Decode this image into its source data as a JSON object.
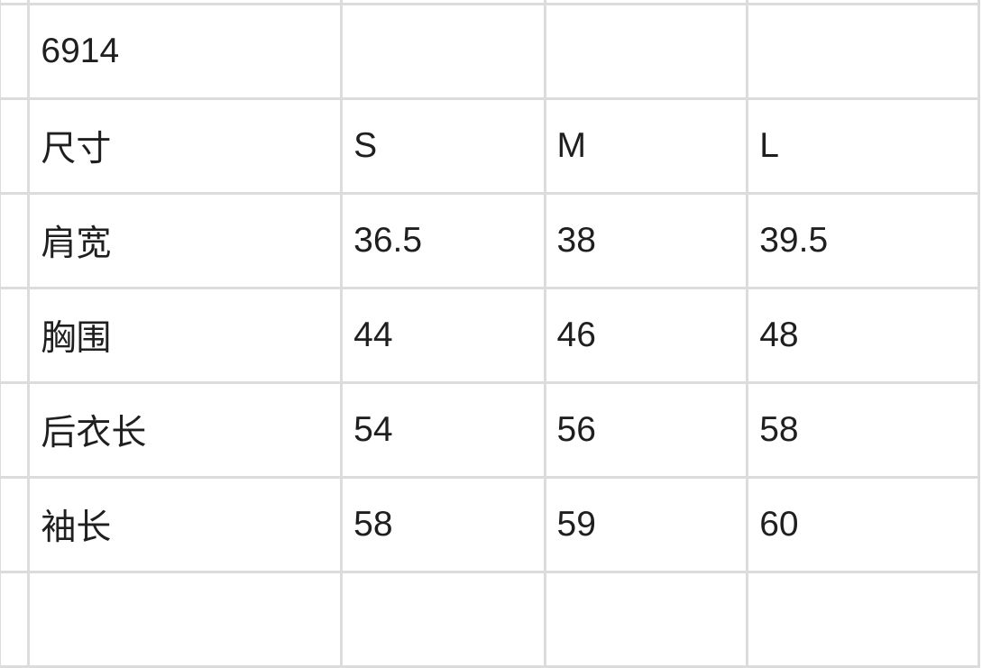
{
  "sheet": {
    "title_cell": "6914",
    "header": [
      "尺寸",
      "S",
      "M",
      "L"
    ],
    "rows": [
      {
        "label": "肩宽",
        "values": [
          "36.5",
          "38",
          "39.5"
        ]
      },
      {
        "label": "胸围",
        "values": [
          "44",
          "46",
          "48"
        ]
      },
      {
        "label": "后衣长",
        "values": [
          "54",
          "56",
          "58"
        ]
      },
      {
        "label": "袖长",
        "values": [
          "58",
          "59",
          "60"
        ]
      }
    ]
  }
}
